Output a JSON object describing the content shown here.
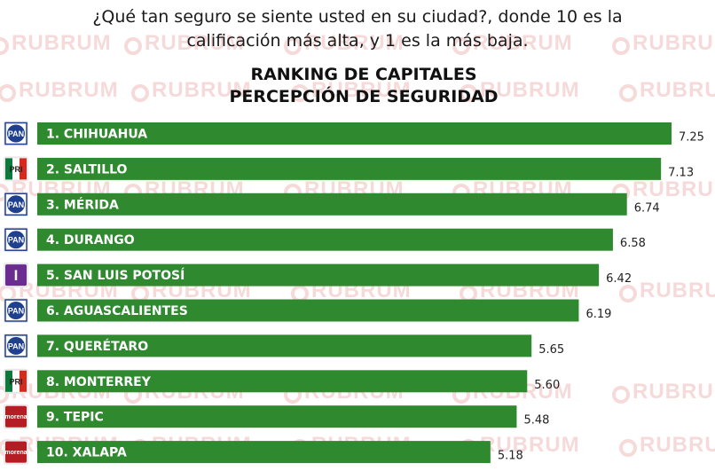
{
  "header": {
    "question_line1": "¿Qué tan seguro se siente usted en su ciudad?, donde 10 es la",
    "question_line2": "calificación más alta, y  1 es la más baja.",
    "title_line1": "RANKING DE CAPITALES",
    "title_line2": "PERCEPCIÓN DE SEGURIDAD"
  },
  "watermark": {
    "text": "RUBRUM"
  },
  "colors": {
    "bar": "#2f8a2f",
    "pan": "#1f3f8f",
    "pri_green": "#0b7a3a",
    "pri_red": "#d52b1e",
    "independiente": "#6a2c91",
    "morena": "#b51d24"
  },
  "chart_data": {
    "type": "bar",
    "orientation": "horizontal",
    "title": "RANKING DE CAPITALES PERCEPCIÓN DE SEGURIDAD",
    "xlim": [
      0,
      7.25
    ],
    "grid": false,
    "legend": "none",
    "categories": [
      "1. CHIHUAHUA",
      "2. SALTILLO",
      "3. MÉRIDA",
      "4. DURANGO",
      "5. SAN LUIS POTOSÍ",
      "6. AGUASCALIENTES",
      "7. QUERÉTARO",
      "8. MONTERREY",
      "9. TEPIC",
      "10. XALAPA"
    ],
    "values": [
      7.25,
      7.13,
      6.74,
      6.58,
      6.42,
      6.19,
      5.65,
      5.6,
      5.48,
      5.18
    ],
    "value_labels": [
      "7.25",
      "7.13",
      "6.74",
      "6.58",
      "6.42",
      "6.19",
      "5.65",
      "5.60",
      "5.48",
      "5.18"
    ],
    "party_icons": [
      "pan",
      "pri",
      "pan",
      "pan",
      "independiente",
      "pan",
      "pan",
      "pri",
      "morena",
      "morena"
    ],
    "icon_texts": {
      "pan": "PAN",
      "pri": "PRI",
      "independiente": "I",
      "morena": "morena"
    }
  }
}
